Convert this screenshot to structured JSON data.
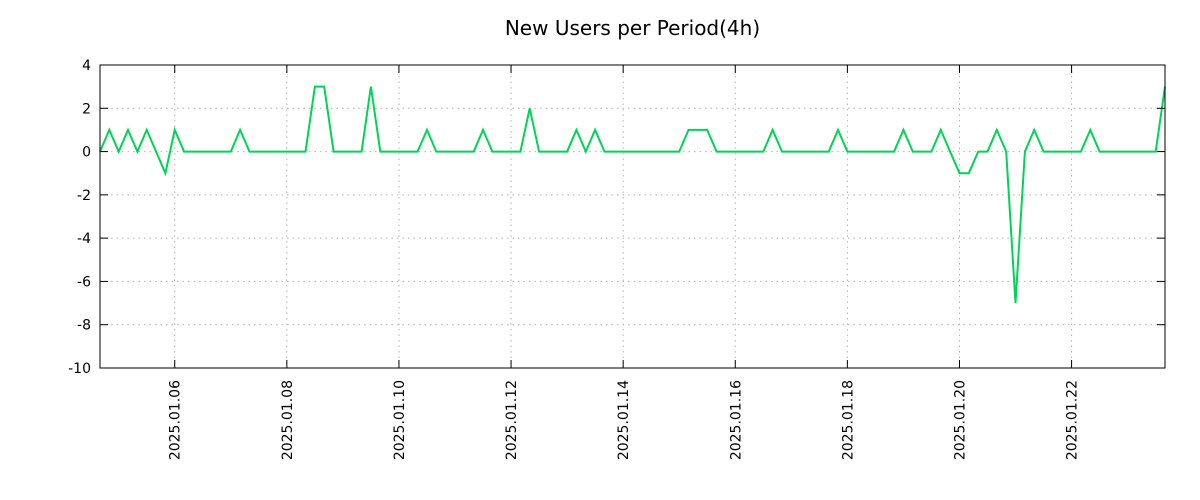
{
  "chart_data": {
    "type": "line",
    "title": "New Users per Period(4h)",
    "period": "4h",
    "line_color": "#00d455",
    "grid_color": "#b3b3b3",
    "axis_color": "#000000",
    "background": "#ffffff",
    "grid": true,
    "legend": "none",
    "ylim": [
      -10,
      4
    ],
    "yticks": [
      4,
      2,
      0,
      -2,
      -4,
      -6,
      -8,
      -10
    ],
    "x_tick_labels": [
      "2025.01.06",
      "2025.01.08",
      "2025.01.10",
      "2025.01.12",
      "2025.01.14",
      "2025.01.16",
      "2025.01.18",
      "2025.01.20",
      "2025.01.22"
    ],
    "x_tick_indices": [
      8,
      20,
      32,
      44,
      56,
      68,
      80,
      92,
      104
    ],
    "values": [
      0,
      1,
      0,
      1,
      0,
      1,
      0,
      -1,
      1,
      0,
      0,
      0,
      0,
      0,
      0,
      1,
      0,
      0,
      0,
      0,
      0,
      0,
      0,
      3,
      3,
      0,
      0,
      0,
      0,
      3,
      0,
      0,
      0,
      0,
      0,
      1,
      0,
      0,
      0,
      0,
      0,
      1,
      0,
      0,
      0,
      0,
      2,
      0,
      0,
      0,
      0,
      1,
      0,
      1,
      0,
      0,
      0,
      0,
      0,
      0,
      0,
      0,
      0,
      1,
      1,
      1,
      0,
      0,
      0,
      0,
      0,
      0,
      1,
      0,
      0,
      0,
      0,
      0,
      0,
      1,
      0,
      0,
      0,
      0,
      0,
      0,
      1,
      0,
      0,
      0,
      1,
      0,
      -1,
      -1,
      0,
      0,
      1,
      0,
      -7,
      0,
      1,
      0,
      0,
      0,
      0,
      0,
      1,
      0,
      0,
      0,
      0,
      0,
      0,
      0,
      3
    ]
  }
}
